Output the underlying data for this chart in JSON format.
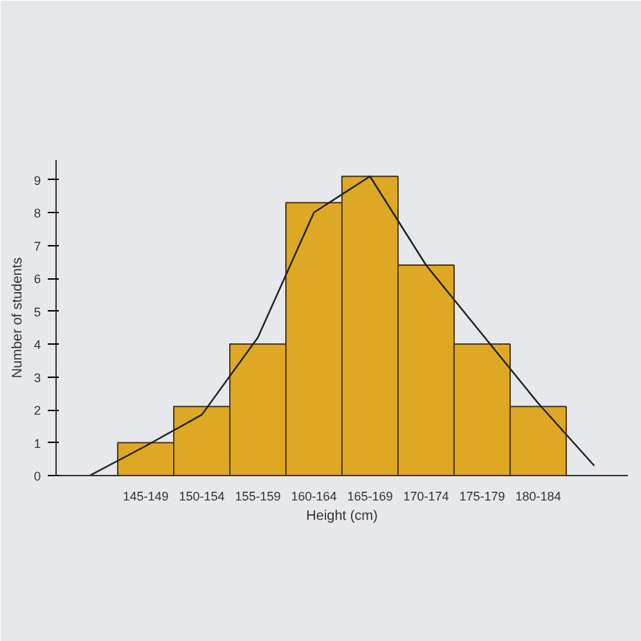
{
  "chart_data": {
    "type": "bar",
    "xlabel": "Height (cm)",
    "ylabel": "Number of students",
    "categories": [
      null,
      "145-149",
      "150-154",
      "155-159",
      "160-164",
      "165-169",
      "170-174",
      "175-179",
      "180-184",
      null
    ],
    "series": [
      {
        "color": "#dfa824",
        "values": [
          null,
          1,
          2.1,
          4,
          8.3,
          9.1,
          6.4,
          4,
          2.1,
          null
        ]
      },
      {
        "type": "line",
        "color": "#222222",
        "values": [
          0,
          0.9,
          1.85,
          4.2,
          8.0,
          9.1,
          6.4,
          4.3,
          2.2,
          0.3
        ]
      }
    ],
    "ylim": [
      0,
      9.6
    ],
    "yticks": [
      0,
      1,
      2,
      3,
      4,
      5,
      6,
      7,
      8,
      9
    ],
    "grid": false,
    "marker": "none",
    "line_style": "solid"
  }
}
